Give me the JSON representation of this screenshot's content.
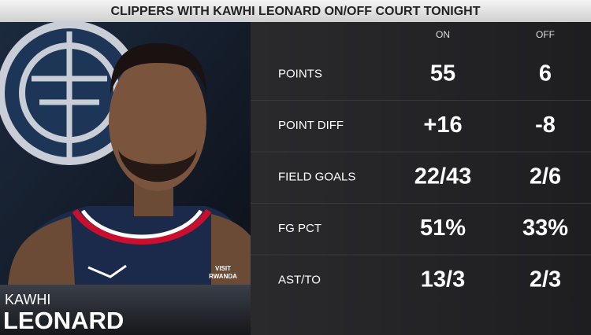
{
  "header": {
    "title": "CLIPPERS WITH KAWHI LEONARD ON/OFF COURT TONIGHT"
  },
  "player": {
    "first_name": "KAWHI",
    "last_name": "LEONARD",
    "jersey_sponsor": [
      "VISIT",
      "RWANDA"
    ]
  },
  "table": {
    "columns": [
      "ON",
      "OFF"
    ],
    "rows": [
      [
        "POINTS",
        "55",
        "6"
      ],
      [
        "POINT DIFF",
        "+16",
        "-8"
      ],
      [
        "FIELD GOALS",
        "22/43",
        "2/6"
      ],
      [
        "FG PCT",
        "51%",
        "33%"
      ],
      [
        "AST/TO",
        "13/3",
        "2/3"
      ]
    ]
  }
}
